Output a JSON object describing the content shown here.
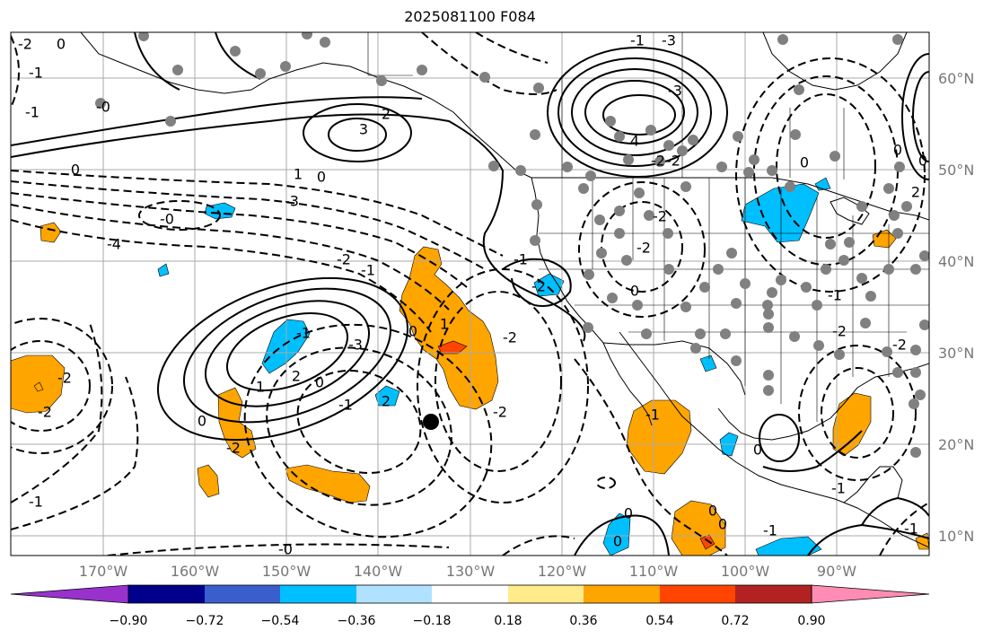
{
  "title": "2025081100 F084",
  "lat_labels": [
    "60°N",
    "50°N",
    "40°N",
    "30°N",
    "20°N",
    "10°N"
  ],
  "lon_labels": [
    "170°W",
    "160°W",
    "150°W",
    "140°W",
    "130°W",
    "120°W",
    "110°W",
    "100°W",
    "90°W"
  ],
  "colorbar": {
    "colors": [
      "#9932cc",
      "#00008b",
      "#3a5fcd",
      "#00bfff",
      "#b0e2ff",
      "#ffffff",
      "#ffeb8a",
      "#ffa500",
      "#ff4500",
      "#b22222",
      "#ff8cb4"
    ],
    "ticks": [
      "−0.90",
      "−0.72",
      "−0.54",
      "−0.36",
      "−0.18",
      "0.18",
      "0.36",
      "0.54",
      "0.72",
      "0.90"
    ]
  },
  "contour_labels": [
    "-2",
    "0",
    "-1",
    "-1",
    "0",
    "-0",
    "-1",
    "-3",
    "2",
    "3",
    "-3",
    "4",
    "-2",
    "-2",
    "0",
    "1",
    "-0",
    "-4",
    "-3",
    "-2",
    "-1",
    "-2",
    "-2",
    "0",
    "-1",
    "-2",
    "-1",
    "-3",
    "1",
    "2",
    "0",
    "0",
    "1",
    "-2",
    "-2",
    "-1",
    "2",
    "-2",
    "-2",
    "-1",
    "0",
    "-2",
    "-1",
    "0",
    "2",
    "0",
    "0",
    "-2",
    "-2",
    "0",
    "-1",
    "0",
    "0",
    "-1",
    "-1",
    "0",
    "0",
    "-0",
    "-1"
  ],
  "legend_colors": {
    "positive_orange": "#ffa500",
    "positive_red": "#ff4500",
    "negative_blue": "#00bfff",
    "station_dot": "#808080",
    "grid": "#aaaaaa"
  }
}
